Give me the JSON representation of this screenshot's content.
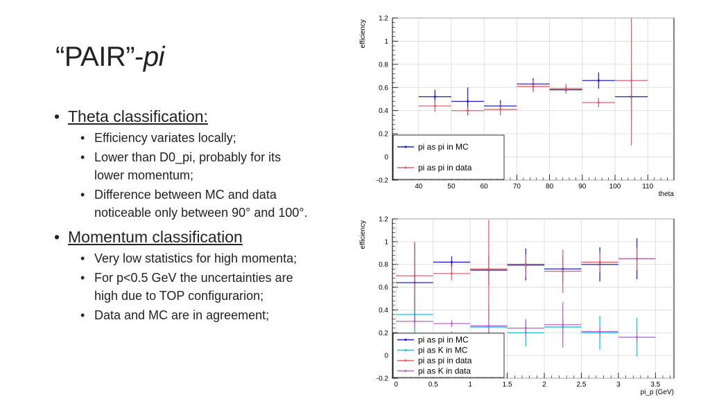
{
  "title": {
    "main": "“PAIR”-",
    "italic": "pi"
  },
  "bullets": [
    {
      "text": "Theta classification:",
      "subs": [
        "Efficiency variates locally;",
        "Lower than D0_pi, probably for its lower momentum;",
        "Difference between MC and data noticeable only between 90° and 100°."
      ]
    },
    {
      "text": "Momentum classification",
      "subs": [
        "Very low statistics for high momenta;",
        "For p<0.5 GeV the uncertainties are high due to TOP configuration;",
        "Data and MC are in agreement;"
      ]
    }
  ],
  "bullet_lines": {
    "b0": "Theta classification:",
    "b0s0": "Efficiency variates locally;",
    "b0s1a": "Lower than D0_pi, probably for its",
    "b0s1b": "lower momentum;",
    "b0s2a": "Difference between MC and data",
    "b0s2b": "noticeable only between 90° and 100°.",
    "b1": "Momentum classification",
    "b1s0": "Very low statistics for high momenta;",
    "b1s1a": "For p<0.5 GeV the uncertainties are",
    "b1s1b": "high due to TOP configurarion;",
    "b1s2": "Data and MC are in agreement;"
  },
  "chart_data": [
    {
      "type": "scatter",
      "ylabel": "efficiency",
      "xlabel": "theta",
      "xlim": [
        32,
        118
      ],
      "ylim": [
        -0.2,
        1.2
      ],
      "xticks": [
        40,
        50,
        60,
        70,
        80,
        90,
        100,
        110
      ],
      "yticks": [
        -0.2,
        0,
        0.2,
        0.4,
        0.6,
        0.8,
        1,
        1.2
      ],
      "grid": true,
      "legend_position": "bottom-left",
      "series": [
        {
          "name": "pi as pi in MC",
          "color": "#1f1fd0",
          "points": [
            {
              "x": 45,
              "xerr": 5,
              "y": 0.52,
              "yerr": 0.06
            },
            {
              "x": 55,
              "xerr": 5,
              "y": 0.48,
              "yerr": 0.12
            },
            {
              "x": 65,
              "xerr": 5,
              "y": 0.44,
              "yerr": 0.05
            },
            {
              "x": 75,
              "xerr": 5,
              "y": 0.63,
              "yerr": 0.05
            },
            {
              "x": 85,
              "xerr": 5,
              "y": 0.58,
              "yerr": 0.03
            },
            {
              "x": 95,
              "xerr": 5,
              "y": 0.66,
              "yerr": 0.07
            },
            {
              "x": 105,
              "xerr": 5,
              "y": 0.52,
              "yerr": 0.21
            }
          ]
        },
        {
          "name": "pi as pi in data",
          "color": "#e06070",
          "points": [
            {
              "x": 45,
              "xerr": 5,
              "y": 0.44,
              "yerr": 0.05
            },
            {
              "x": 55,
              "xerr": 5,
              "y": 0.4,
              "yerr": 0.03
            },
            {
              "x": 65,
              "xerr": 5,
              "y": 0.41,
              "yerr": 0.05
            },
            {
              "x": 75,
              "xerr": 5,
              "y": 0.61,
              "yerr": 0.05
            },
            {
              "x": 85,
              "xerr": 5,
              "y": 0.59,
              "yerr": 0.04
            },
            {
              "x": 95,
              "xerr": 5,
              "y": 0.47,
              "yerr": 0.04
            },
            {
              "x": 105,
              "xerr": 5,
              "y": 0.66,
              "yerr": 0.56
            }
          ]
        }
      ]
    },
    {
      "type": "scatter",
      "ylabel": "efficiency",
      "xlabel": "pi_p (GeV)",
      "xlim": [
        -0.05,
        3.75
      ],
      "ylim": [
        -0.2,
        1.2
      ],
      "xticks": [
        0,
        0.5,
        1,
        1.5,
        2,
        2.5,
        3,
        3.5
      ],
      "yticks": [
        -0.2,
        0,
        0.2,
        0.4,
        0.6,
        0.8,
        1,
        1.2
      ],
      "grid": true,
      "legend_position": "bottom-left",
      "series": [
        {
          "name": "pi as pi in MC",
          "color": "#1f1fd0",
          "points": [
            {
              "x": 0.25,
              "xerr": 0.25,
              "y": 0.64,
              "yerr": 0.35
            },
            {
              "x": 0.75,
              "xerr": 0.25,
              "y": 0.82,
              "yerr": 0.05
            },
            {
              "x": 1.25,
              "xerr": 0.25,
              "y": 0.75,
              "yerr": 0.13
            },
            {
              "x": 1.75,
              "xerr": 0.25,
              "y": 0.8,
              "yerr": 0.14
            },
            {
              "x": 2.25,
              "xerr": 0.25,
              "y": 0.76,
              "yerr": 0.11
            },
            {
              "x": 2.75,
              "xerr": 0.25,
              "y": 0.8,
              "yerr": 0.15
            },
            {
              "x": 3.25,
              "xerr": 0.25,
              "y": 0.85,
              "yerr": 0.18
            }
          ]
        },
        {
          "name": "pi as K in MC",
          "color": "#10c8d8",
          "points": [
            {
              "x": 0.25,
              "xerr": 0.25,
              "y": 0.36,
              "yerr": 0.17
            },
            {
              "x": 0.75,
              "xerr": 0.25,
              "y": 0.18,
              "yerr": 0.03
            },
            {
              "x": 1.25,
              "xerr": 0.25,
              "y": 0.25,
              "yerr": 0.2
            },
            {
              "x": 1.75,
              "xerr": 0.25,
              "y": 0.2,
              "yerr": 0.12
            },
            {
              "x": 2.25,
              "xerr": 0.25,
              "y": 0.25,
              "yerr": 0.09
            },
            {
              "x": 2.75,
              "xerr": 0.25,
              "y": 0.2,
              "yerr": 0.15
            },
            {
              "x": 3.25,
              "xerr": 0.25,
              "y": 0.16,
              "yerr": 0.17
            }
          ]
        },
        {
          "name": "pi as pi in data",
          "color": "#e06070",
          "points": [
            {
              "x": 0.25,
              "xerr": 0.25,
              "y": 0.7,
              "yerr": 0.3
            },
            {
              "x": 0.75,
              "xerr": 0.25,
              "y": 0.72,
              "yerr": 0.06
            },
            {
              "x": 1.25,
              "xerr": 0.25,
              "y": 0.76,
              "yerr": 0.43
            },
            {
              "x": 1.75,
              "xerr": 0.25,
              "y": 0.79,
              "yerr": 0.1
            },
            {
              "x": 2.25,
              "xerr": 0.25,
              "y": 0.74,
              "yerr": 0.19
            },
            {
              "x": 2.75,
              "xerr": 0.25,
              "y": 0.82,
              "yerr": 0.09
            },
            {
              "x": 3.25,
              "xerr": 0.25,
              "y": 0.85,
              "yerr": 0.1
            }
          ]
        },
        {
          "name": "pi as K in data",
          "color": "#c060d0",
          "points": [
            {
              "x": 0.25,
              "xerr": 0.25,
              "y": 0.3,
              "yerr": 0.06
            },
            {
              "x": 0.75,
              "xerr": 0.25,
              "y": 0.28,
              "yerr": 0.03
            },
            {
              "x": 1.25,
              "xerr": 0.25,
              "y": 0.26,
              "yerr": 0.08
            },
            {
              "x": 1.75,
              "xerr": 0.25,
              "y": 0.24,
              "yerr": 0.07
            },
            {
              "x": 2.25,
              "xerr": 0.25,
              "y": 0.27,
              "yerr": 0.2
            },
            {
              "x": 2.75,
              "xerr": 0.25,
              "y": 0.21,
              "yerr": 0.04
            },
            {
              "x": 3.25,
              "xerr": 0.25,
              "y": 0.16,
              "yerr": 0.04
            }
          ]
        }
      ]
    }
  ]
}
